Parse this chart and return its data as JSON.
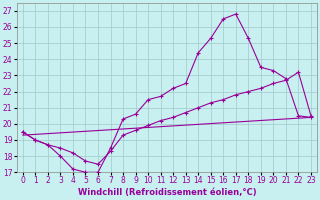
{
  "xlabel": "Windchill (Refroidissement éolien,°C)",
  "xlim": [
    -0.5,
    23.5
  ],
  "ylim": [
    17,
    27.5
  ],
  "yticks": [
    17,
    18,
    19,
    20,
    21,
    22,
    23,
    24,
    25,
    26,
    27
  ],
  "xticks": [
    0,
    1,
    2,
    3,
    4,
    5,
    6,
    7,
    8,
    9,
    10,
    11,
    12,
    13,
    14,
    15,
    16,
    17,
    18,
    19,
    20,
    21,
    22,
    23
  ],
  "bg_color": "#c8f0f0",
  "grid_color": "#a0c8c8",
  "line_color": "#990099",
  "line1_x": [
    0,
    1,
    2,
    3,
    4,
    5,
    6,
    7,
    8,
    9,
    10,
    11,
    12,
    13,
    14,
    15,
    16,
    17,
    18,
    19,
    20,
    21,
    22,
    23
  ],
  "line1_y": [
    19.5,
    19.0,
    18.7,
    18.0,
    17.2,
    17.0,
    17.0,
    18.5,
    20.3,
    20.6,
    21.5,
    21.7,
    22.2,
    22.5,
    24.4,
    25.3,
    26.5,
    26.8,
    25.3,
    23.5,
    23.3,
    22.8,
    20.5,
    20.4
  ],
  "line2_x": [
    0,
    1,
    2,
    3,
    4,
    5,
    6,
    7,
    8,
    9,
    10,
    11,
    12,
    13,
    14,
    15,
    16,
    17,
    18,
    19,
    20,
    21,
    22,
    23
  ],
  "line2_y": [
    19.5,
    19.0,
    18.7,
    18.5,
    18.2,
    17.7,
    17.5,
    18.3,
    19.3,
    19.6,
    19.9,
    20.2,
    20.4,
    20.7,
    21.0,
    21.3,
    21.5,
    21.8,
    22.0,
    22.2,
    22.5,
    22.7,
    23.2,
    20.5
  ],
  "line3_x": [
    0,
    23
  ],
  "line3_y": [
    19.3,
    20.4
  ]
}
